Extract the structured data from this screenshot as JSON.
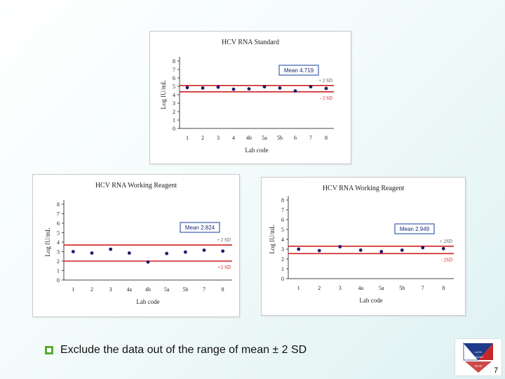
{
  "chart_data": [
    {
      "type": "scatter",
      "title": "HCV RNA Standard",
      "xlabel": "Lab code",
      "ylabel": "Log IU/mL",
      "categories": [
        "1",
        "2",
        "3",
        "4",
        "4b",
        "5a",
        "5b",
        "6",
        "7",
        "8"
      ],
      "values": [
        4.85,
        4.8,
        4.9,
        4.65,
        4.7,
        4.95,
        4.8,
        4.45,
        4.95,
        4.75
      ],
      "ylim": [
        0,
        8
      ],
      "yticks": [
        "0",
        "1",
        "2",
        "3",
        "4",
        "5",
        "6",
        "7",
        "8"
      ],
      "mean_label": "Mean 4.719",
      "upper_limit": 5.1,
      "lower_limit": 4.35,
      "upper_label": "+ 2 SD",
      "lower_label": "- 2 SD",
      "grid": false
    },
    {
      "type": "scatter",
      "title": "HCV RNA Working Reagent",
      "xlabel": "Lab code",
      "ylabel": "Log IU/mL",
      "categories": [
        "1",
        "2",
        "3",
        "4a",
        "4b",
        "5a",
        "5b",
        "7",
        "8"
      ],
      "values": [
        3.0,
        2.85,
        3.25,
        2.85,
        1.9,
        2.8,
        2.95,
        3.15,
        3.05
      ],
      "ylim": [
        0,
        8
      ],
      "yticks": [
        "0",
        "1",
        "2",
        "3",
        "4",
        "5",
        "6",
        "7",
        "8"
      ],
      "mean_label": "Mean 2.824",
      "upper_limit": 3.7,
      "lower_limit": 2.0,
      "upper_label": "+ 2 SD",
      "lower_label": "+2 SD",
      "grid": false
    },
    {
      "type": "scatter",
      "title": "HCV RNA Working Reagent",
      "xlabel": "Lab code",
      "ylabel": "Log IU/mL",
      "categories": [
        "1",
        "2",
        "3",
        "4a",
        "5a",
        "5b",
        "7",
        "8"
      ],
      "values": [
        3.0,
        2.85,
        3.25,
        2.9,
        2.75,
        2.9,
        3.15,
        3.05
      ],
      "ylim": [
        0,
        8
      ],
      "yticks": [
        "0",
        "1",
        "2",
        "3",
        "4",
        "5",
        "6",
        "7",
        "8"
      ],
      "mean_label": "Mean 2.949",
      "upper_limit": 3.3,
      "lower_limit": 2.55,
      "upper_label": "+ 2SD",
      "lower_label": "- 2SD",
      "grid": false
    }
  ],
  "colors": {
    "limit_line": "#d12020",
    "point": "#1a1a6e",
    "mean_box_border": "#3a5fb0",
    "mean_box_text": "#1a2a7a",
    "bullet": "#5aaa2e"
  },
  "footer": {
    "bullet_text": "Exclude the data out of the range of mean ± 2 SD",
    "page_number": "7"
  },
  "logo": {
    "text_lines": [
      "LUCIL",
      "YOUNG",
      "SEOE"
    ]
  }
}
